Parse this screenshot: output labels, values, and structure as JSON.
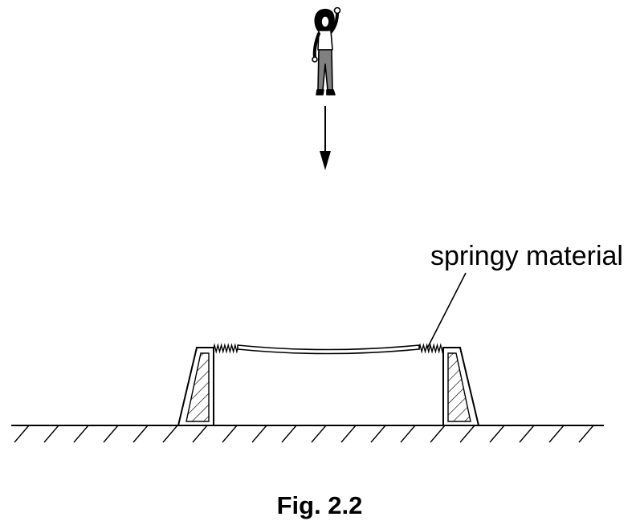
{
  "figure": {
    "annotation": "springy material",
    "caption": "Fig. 2.2"
  },
  "colors": {
    "ink": "#000000",
    "background": "#ffffff",
    "trousers": "#808080"
  },
  "icons": [
    "person-jumping-icon",
    "downward-arrow-icon",
    "trampoline",
    "ground-hatching"
  ]
}
